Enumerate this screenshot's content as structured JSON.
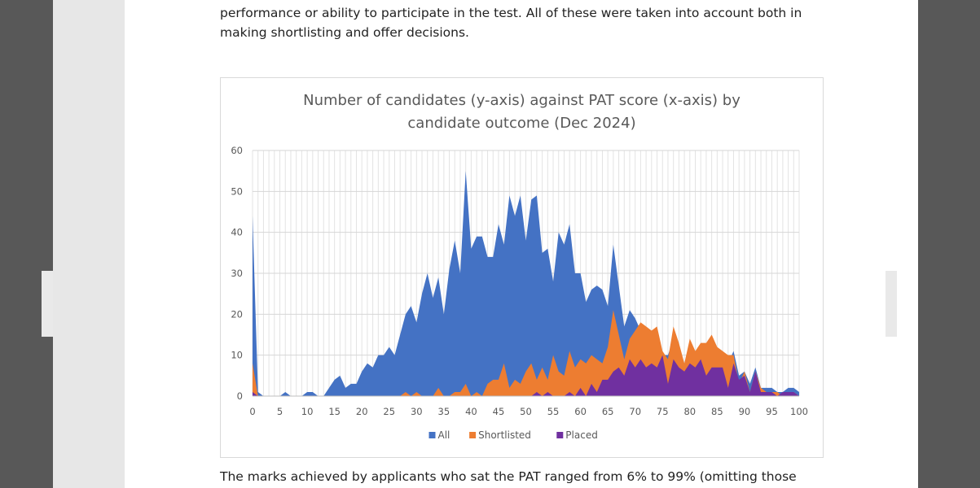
{
  "document": {
    "paragraph_top": "performance or ability to participate in the test. All of these were taken into account both in making shortlisting and offer decisions.",
    "paragraph_bottom": "The marks achieved by applicants who sat the PAT ranged from 6% to 99% (omitting those"
  },
  "chart_data": {
    "type": "area",
    "title_line1": "Number of candidates (y-axis) against PAT score (x-axis) by",
    "title_line2": "candidate outcome (Dec 2024)",
    "xlabel": "",
    "ylabel": "",
    "xlim": [
      0,
      100
    ],
    "ylim": [
      0,
      60
    ],
    "x_ticks": [
      0,
      5,
      10,
      15,
      20,
      25,
      30,
      35,
      40,
      45,
      50,
      55,
      60,
      65,
      70,
      75,
      80,
      85,
      90,
      95,
      100
    ],
    "y_ticks": [
      0,
      10,
      20,
      30,
      40,
      50,
      60
    ],
    "grid": true,
    "legend_position": "bottom",
    "x": [
      0,
      1,
      2,
      3,
      4,
      5,
      6,
      7,
      8,
      9,
      10,
      11,
      12,
      13,
      14,
      15,
      16,
      17,
      18,
      19,
      20,
      21,
      22,
      23,
      24,
      25,
      26,
      27,
      28,
      29,
      30,
      31,
      32,
      33,
      34,
      35,
      36,
      37,
      38,
      39,
      40,
      41,
      42,
      43,
      44,
      45,
      46,
      47,
      48,
      49,
      50,
      51,
      52,
      53,
      54,
      55,
      56,
      57,
      58,
      59,
      60,
      61,
      62,
      63,
      64,
      65,
      66,
      67,
      68,
      69,
      70,
      71,
      72,
      73,
      74,
      75,
      76,
      77,
      78,
      79,
      80,
      81,
      82,
      83,
      84,
      85,
      86,
      87,
      88,
      89,
      90,
      91,
      92,
      93,
      94,
      95,
      96,
      97,
      98,
      99,
      100
    ],
    "series": [
      {
        "name": "All",
        "color": "#4472c4",
        "values": [
          44,
          1,
          0,
          0,
          0,
          0,
          1,
          0,
          0,
          0,
          1,
          1,
          0,
          0,
          2,
          4,
          5,
          2,
          3,
          3,
          6,
          8,
          7,
          10,
          10,
          12,
          10,
          15,
          20,
          22,
          18,
          25,
          30,
          24,
          29,
          20,
          31,
          38,
          30,
          55,
          36,
          39,
          39,
          34,
          34,
          42,
          37,
          49,
          44,
          49,
          38,
          48,
          49,
          35,
          36,
          28,
          40,
          37,
          42,
          30,
          30,
          23,
          26,
          27,
          26,
          22,
          37,
          27,
          17,
          21,
          19,
          16,
          13,
          15,
          12,
          10,
          10,
          14,
          10,
          8,
          9,
          8,
          10,
          8,
          10,
          9,
          8,
          8,
          11,
          5,
          6,
          3,
          7,
          2,
          2,
          2,
          1,
          1,
          2,
          2,
          1
        ]
      },
      {
        "name": "Shortlisted",
        "color": "#ed7d31",
        "values": [
          8,
          0,
          0,
          0,
          0,
          0,
          0,
          0,
          0,
          0,
          0,
          0,
          0,
          0,
          0,
          0,
          0,
          0,
          0,
          0,
          0,
          0,
          0,
          0,
          0,
          0,
          0,
          0,
          1,
          0,
          1,
          0,
          0,
          0,
          2,
          0,
          0,
          1,
          1,
          3,
          0,
          1,
          0,
          3,
          4,
          4,
          8,
          2,
          4,
          3,
          6,
          8,
          4,
          7,
          4,
          10,
          6,
          5,
          11,
          7,
          9,
          8,
          10,
          9,
          8,
          12,
          21,
          15,
          9,
          14,
          16,
          18,
          17,
          16,
          17,
          11,
          9,
          17,
          13,
          8,
          14,
          11,
          13,
          13,
          15,
          12,
          11,
          10,
          10,
          3,
          6,
          1,
          6,
          2,
          1,
          1,
          1,
          0,
          1,
          1,
          0
        ]
      },
      {
        "name": "Placed",
        "color": "#7030a0",
        "values": [
          1,
          0,
          0,
          0,
          0,
          0,
          0,
          0,
          0,
          0,
          0,
          0,
          0,
          0,
          0,
          0,
          0,
          0,
          0,
          0,
          0,
          0,
          0,
          0,
          0,
          0,
          0,
          0,
          0,
          0,
          0,
          0,
          0,
          0,
          0,
          0,
          0,
          0,
          0,
          0,
          0,
          0,
          0,
          0,
          0,
          0,
          0,
          0,
          0,
          0,
          0,
          0,
          1,
          0,
          1,
          0,
          0,
          0,
          1,
          0,
          2,
          0,
          3,
          1,
          4,
          4,
          6,
          7,
          5,
          9,
          7,
          9,
          7,
          8,
          7,
          10,
          3,
          9,
          7,
          6,
          8,
          7,
          9,
          5,
          7,
          7,
          7,
          2,
          8,
          4,
          5,
          1,
          6,
          1,
          1,
          1,
          0,
          1,
          1,
          1,
          0
        ]
      }
    ]
  }
}
